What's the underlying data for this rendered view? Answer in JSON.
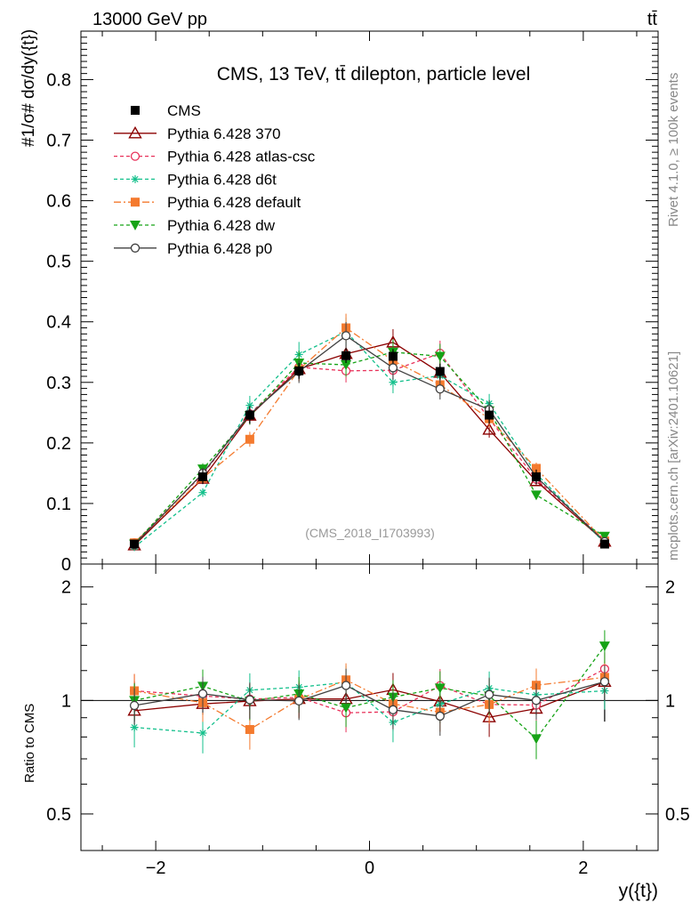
{
  "header": {
    "energy_label": "13000 GeV pp",
    "process_label": "tt̄"
  },
  "side": {
    "rivet_label": "Rivet 4.1.0, ≥ 100k events",
    "mcplots_label": "mcplots.cern.ch [arXiv:2401.10621]"
  },
  "chart_data": {
    "type": "line",
    "title": "CMS, 13 TeV, tt̄ dilepton, particle level",
    "analysis_label": "(CMS_2018_I1703993)",
    "ylabel_top": "#1/σ# dσ/dy({t})",
    "ylabel_bottom": "Ratio to CMS",
    "xlabel": "y({t})",
    "xlim": [
      -2.7,
      2.7
    ],
    "ylim_top": [
      0,
      0.88
    ],
    "ylim_bottom": [
      0.4,
      2.3
    ],
    "x_ticks": [
      -2,
      0,
      2
    ],
    "x_tick_labels": [
      "−2",
      "0",
      "2"
    ],
    "y_ticks_top": [
      0.1,
      0.2,
      0.3,
      0.4,
      0.5,
      0.6,
      0.7,
      0.8
    ],
    "y_tick_labels_top": [
      "0.1",
      "0.2",
      "0.3",
      "0.4",
      "0.5",
      "0.6",
      "0.7",
      "0.8"
    ],
    "y_zero_label": "0",
    "y_ticks_bottom": [
      0.5,
      1,
      2
    ],
    "y_tick_labels_bottom": [
      "0.5",
      "1",
      "2"
    ],
    "x": [
      -2.2,
      -1.56,
      -1.12,
      -0.66,
      -0.22,
      0.22,
      0.66,
      1.12,
      1.56,
      2.2
    ],
    "data": {
      "name": "CMS",
      "values": [
        0.033,
        0.144,
        0.246,
        0.319,
        0.344,
        0.343,
        0.318,
        0.246,
        0.144,
        0.033
      ],
      "errors": [
        0.004,
        0.012,
        0.014,
        0.013,
        0.012,
        0.012,
        0.013,
        0.014,
        0.012,
        0.004
      ]
    },
    "series": [
      {
        "name": "Pythia 6.428 370",
        "color": "#8b0000",
        "dash": "",
        "marker": "triangle-up-open",
        "values": [
          0.031,
          0.141,
          0.245,
          0.322,
          0.347,
          0.366,
          0.316,
          0.222,
          0.137,
          0.037
        ]
      },
      {
        "name": "Pythia 6.428 atlas-csc",
        "color": "#e8315a",
        "dash": "4,3",
        "marker": "circle-open",
        "values": [
          0.035,
          0.148,
          0.248,
          0.325,
          0.319,
          0.32,
          0.348,
          0.24,
          0.14,
          0.04
        ]
      },
      {
        "name": "Pythia 6.428 d6t",
        "color": "#14c08c",
        "dash": "4,3",
        "marker": "star",
        "values": [
          0.028,
          0.118,
          0.262,
          0.346,
          0.384,
          0.3,
          0.311,
          0.265,
          0.149,
          0.035
        ]
      },
      {
        "name": "Pythia 6.428 default",
        "color": "#f47a2e",
        "dash": "8,3,2,3",
        "marker": "square",
        "values": [
          0.035,
          0.142,
          0.206,
          0.321,
          0.39,
          0.336,
          0.296,
          0.24,
          0.158,
          0.038
        ]
      },
      {
        "name": "Pythia 6.428 dw",
        "color": "#16a316",
        "dash": "4,3",
        "marker": "triangle-down",
        "values": [
          0.033,
          0.157,
          0.245,
          0.332,
          0.329,
          0.35,
          0.343,
          0.253,
          0.114,
          0.046
        ]
      },
      {
        "name": "Pythia 6.428 p0",
        "color": "#404040",
        "dash": "",
        "marker": "circle-open",
        "values": [
          0.032,
          0.15,
          0.247,
          0.318,
          0.377,
          0.324,
          0.289,
          0.255,
          0.144,
          0.037
        ]
      }
    ]
  }
}
